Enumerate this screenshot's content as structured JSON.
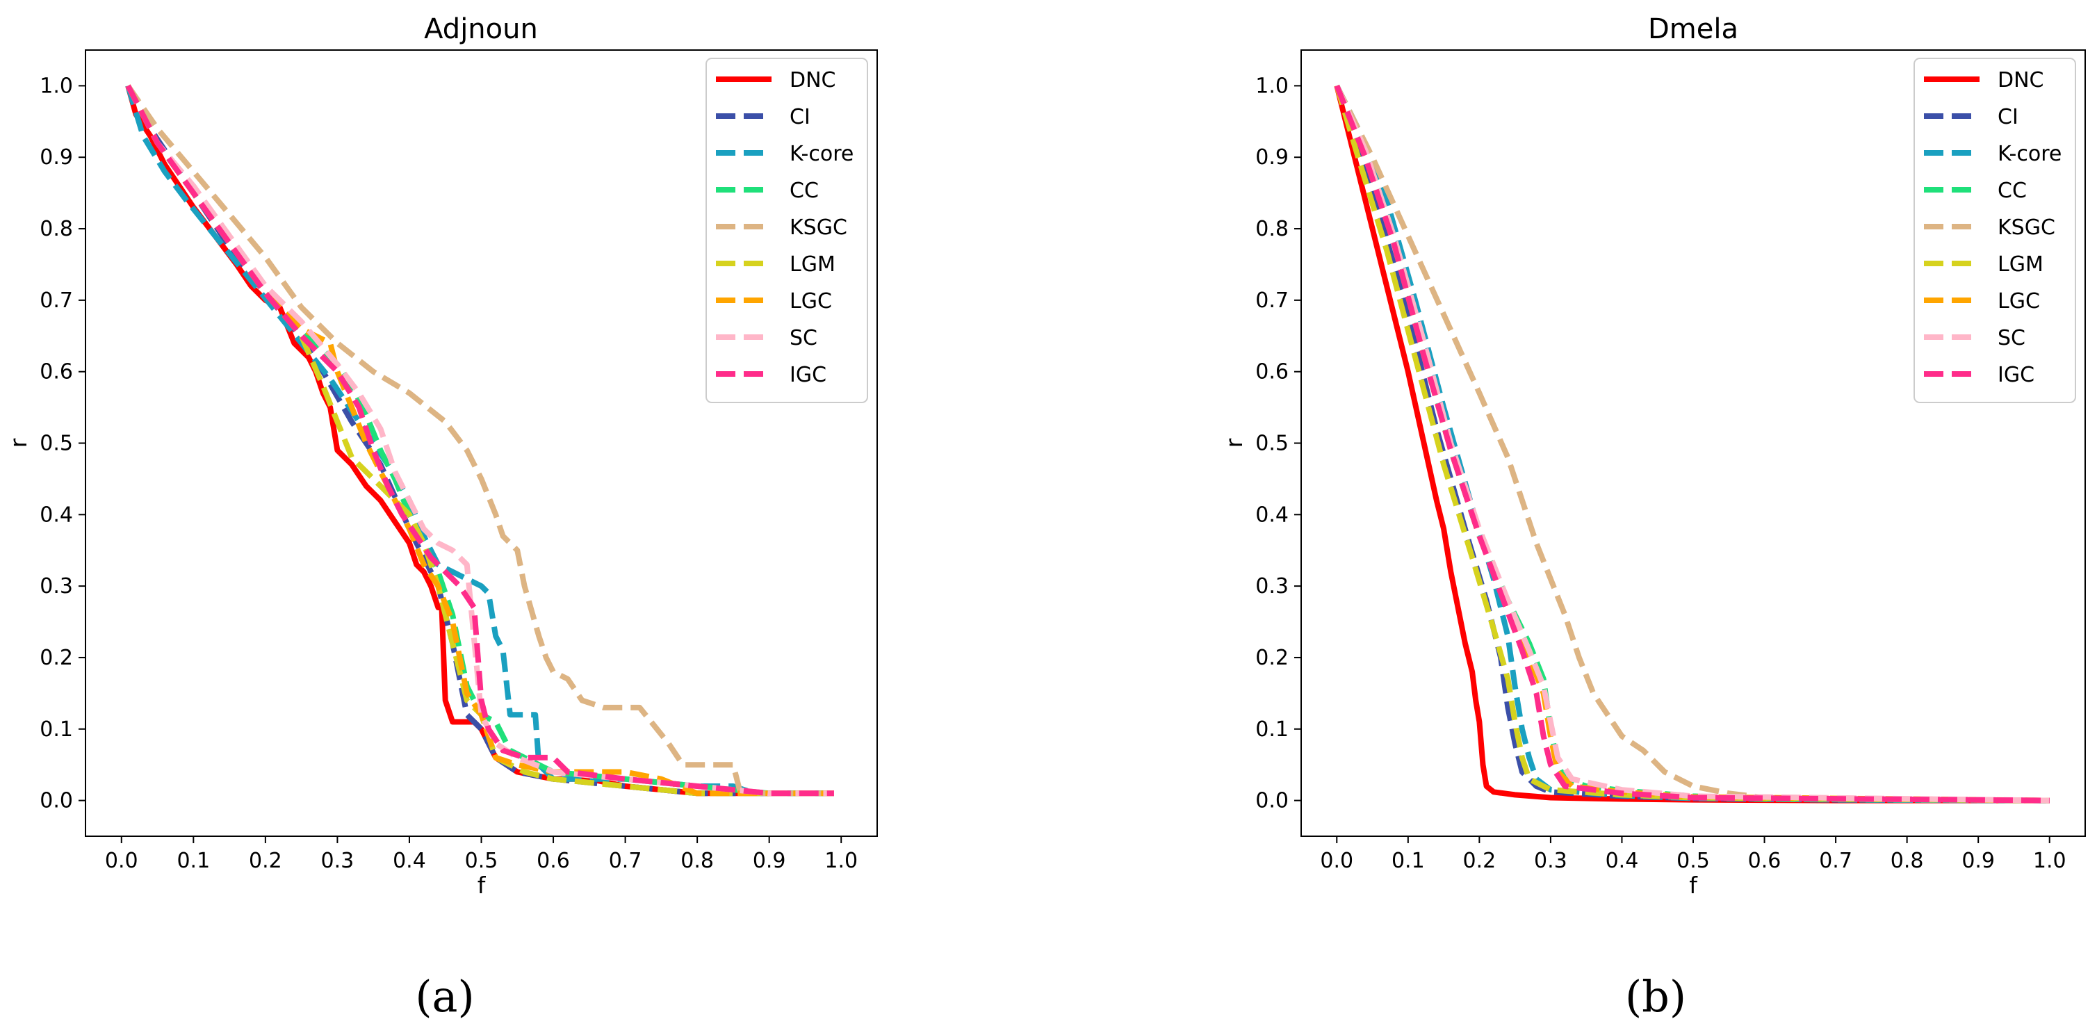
{
  "chart_data": [
    {
      "type": "line",
      "caption": "(a)",
      "title": "Adjnoun",
      "xlabel": "f",
      "ylabel": "r",
      "xlim": [
        -0.05,
        1.05
      ],
      "ylim": [
        -0.05,
        1.05
      ],
      "xticks": [
        "0.0",
        "0.1",
        "0.2",
        "0.3",
        "0.4",
        "0.5",
        "0.6",
        "0.7",
        "0.8",
        "0.9",
        "1.0"
      ],
      "yticks": [
        "0.0",
        "0.1",
        "0.2",
        "0.3",
        "0.4",
        "0.5",
        "0.6",
        "0.7",
        "0.8",
        "0.9",
        "1.0"
      ],
      "legend": "top-right",
      "series": [
        {
          "name": "DNC",
          "color": "#ff0000",
          "dash": "solid",
          "x": [
            0.009,
            0.02,
            0.04,
            0.06,
            0.08,
            0.1,
            0.13,
            0.16,
            0.18,
            0.2,
            0.22,
            0.24,
            0.26,
            0.27,
            0.28,
            0.29,
            0.3,
            0.32,
            0.34,
            0.36,
            0.38,
            0.4,
            0.41,
            0.42,
            0.43,
            0.44,
            0.445,
            0.45,
            0.46,
            0.48,
            0.49,
            0.5,
            0.52,
            0.55,
            0.6,
            0.65,
            0.7,
            0.8,
            0.9,
            0.99
          ],
          "y": [
            1.0,
            0.96,
            0.93,
            0.89,
            0.86,
            0.83,
            0.79,
            0.75,
            0.72,
            0.7,
            0.69,
            0.64,
            0.62,
            0.6,
            0.57,
            0.55,
            0.49,
            0.47,
            0.44,
            0.42,
            0.39,
            0.36,
            0.33,
            0.32,
            0.3,
            0.27,
            0.27,
            0.14,
            0.11,
            0.11,
            0.11,
            0.1,
            0.06,
            0.04,
            0.03,
            0.03,
            0.02,
            0.01,
            0.01,
            0.01
          ]
        },
        {
          "name": "CI",
          "color": "#3b4fa8",
          "dash": "dashed",
          "x": [
            0.009,
            0.04,
            0.08,
            0.12,
            0.16,
            0.2,
            0.24,
            0.28,
            0.32,
            0.36,
            0.4,
            0.42,
            0.44,
            0.46,
            0.48,
            0.5,
            0.52,
            0.55,
            0.6,
            0.7,
            0.8,
            0.9,
            0.99
          ],
          "y": [
            1.0,
            0.94,
            0.88,
            0.82,
            0.76,
            0.71,
            0.66,
            0.6,
            0.53,
            0.47,
            0.38,
            0.34,
            0.3,
            0.22,
            0.12,
            0.1,
            0.06,
            0.04,
            0.03,
            0.02,
            0.01,
            0.01,
            0.01
          ]
        },
        {
          "name": "K-core",
          "color": "#1aa0c0",
          "dash": "dashed",
          "x": [
            0.009,
            0.03,
            0.06,
            0.09,
            0.13,
            0.17,
            0.21,
            0.25,
            0.29,
            0.33,
            0.37,
            0.4,
            0.42,
            0.44,
            0.46,
            0.48,
            0.5,
            0.51,
            0.52,
            0.53,
            0.54,
            0.56,
            0.575,
            0.58,
            0.6,
            0.7,
            0.8,
            0.85,
            0.88,
            0.99
          ],
          "y": [
            1.0,
            0.93,
            0.88,
            0.84,
            0.79,
            0.74,
            0.69,
            0.64,
            0.59,
            0.53,
            0.47,
            0.42,
            0.37,
            0.33,
            0.32,
            0.31,
            0.3,
            0.29,
            0.23,
            0.21,
            0.12,
            0.12,
            0.12,
            0.05,
            0.03,
            0.03,
            0.02,
            0.02,
            0.01,
            0.01
          ]
        },
        {
          "name": "CC",
          "color": "#1fe07a",
          "dash": "dashed",
          "x": [
            0.009,
            0.05,
            0.1,
            0.15,
            0.2,
            0.25,
            0.3,
            0.32,
            0.34,
            0.36,
            0.38,
            0.4,
            0.42,
            0.44,
            0.46,
            0.48,
            0.5,
            0.52,
            0.54,
            0.56,
            0.58,
            0.6,
            0.7,
            0.8,
            0.9,
            0.99
          ],
          "y": [
            1.0,
            0.92,
            0.85,
            0.78,
            0.71,
            0.66,
            0.61,
            0.58,
            0.54,
            0.49,
            0.45,
            0.4,
            0.36,
            0.32,
            0.26,
            0.16,
            0.12,
            0.11,
            0.07,
            0.06,
            0.05,
            0.04,
            0.03,
            0.02,
            0.01,
            0.01
          ]
        },
        {
          "name": "KSGC",
          "color": "#ddb483",
          "dash": "dashed",
          "x": [
            0.009,
            0.05,
            0.1,
            0.15,
            0.2,
            0.25,
            0.3,
            0.35,
            0.4,
            0.45,
            0.48,
            0.5,
            0.52,
            0.53,
            0.54,
            0.55,
            0.56,
            0.58,
            0.59,
            0.6,
            0.62,
            0.64,
            0.67,
            0.72,
            0.76,
            0.78,
            0.79,
            0.82,
            0.85,
            0.86,
            0.99
          ],
          "y": [
            1.0,
            0.94,
            0.88,
            0.82,
            0.76,
            0.69,
            0.64,
            0.6,
            0.57,
            0.53,
            0.49,
            0.45,
            0.4,
            0.37,
            0.36,
            0.35,
            0.3,
            0.23,
            0.2,
            0.18,
            0.17,
            0.14,
            0.13,
            0.13,
            0.08,
            0.05,
            0.05,
            0.05,
            0.05,
            0.01,
            0.01
          ]
        },
        {
          "name": "LGM",
          "color": "#d6d21e",
          "dash": "dashed",
          "x": [
            0.009,
            0.05,
            0.1,
            0.15,
            0.2,
            0.25,
            0.28,
            0.3,
            0.32,
            0.34,
            0.36,
            0.38,
            0.4,
            0.42,
            0.44,
            0.46,
            0.48,
            0.5,
            0.52,
            0.54,
            0.56,
            0.6,
            0.7,
            0.8,
            0.9,
            0.99
          ],
          "y": [
            1.0,
            0.92,
            0.85,
            0.78,
            0.71,
            0.65,
            0.58,
            0.53,
            0.48,
            0.46,
            0.44,
            0.42,
            0.4,
            0.36,
            0.3,
            0.22,
            0.14,
            0.12,
            0.06,
            0.05,
            0.04,
            0.03,
            0.02,
            0.01,
            0.01,
            0.01
          ]
        },
        {
          "name": "LGC",
          "color": "#ffa500",
          "dash": "dashed",
          "x": [
            0.009,
            0.05,
            0.1,
            0.15,
            0.2,
            0.25,
            0.29,
            0.3,
            0.32,
            0.34,
            0.36,
            0.38,
            0.4,
            0.42,
            0.44,
            0.46,
            0.48,
            0.5,
            0.52,
            0.55,
            0.6,
            0.65,
            0.7,
            0.75,
            0.8,
            0.9,
            0.99
          ],
          "y": [
            1.0,
            0.92,
            0.85,
            0.78,
            0.71,
            0.66,
            0.64,
            0.6,
            0.55,
            0.5,
            0.46,
            0.42,
            0.38,
            0.33,
            0.3,
            0.25,
            0.15,
            0.12,
            0.06,
            0.05,
            0.04,
            0.04,
            0.04,
            0.03,
            0.01,
            0.01,
            0.01
          ]
        },
        {
          "name": "SC",
          "color": "#ffb6c8",
          "dash": "dashed",
          "x": [
            0.009,
            0.05,
            0.1,
            0.15,
            0.2,
            0.25,
            0.3,
            0.33,
            0.36,
            0.38,
            0.4,
            0.42,
            0.44,
            0.46,
            0.48,
            0.5,
            0.52,
            0.55,
            0.6,
            0.7,
            0.8,
            0.9,
            0.99
          ],
          "y": [
            1.0,
            0.92,
            0.86,
            0.79,
            0.72,
            0.67,
            0.61,
            0.57,
            0.52,
            0.46,
            0.42,
            0.38,
            0.36,
            0.35,
            0.33,
            0.12,
            0.08,
            0.06,
            0.04,
            0.03,
            0.02,
            0.01,
            0.01
          ]
        },
        {
          "name": "IGC",
          "color": "#ff2c8a",
          "dash": "dashed",
          "x": [
            0.009,
            0.05,
            0.1,
            0.15,
            0.2,
            0.25,
            0.3,
            0.33,
            0.35,
            0.37,
            0.39,
            0.41,
            0.43,
            0.45,
            0.47,
            0.49,
            0.5,
            0.51,
            0.53,
            0.56,
            0.6,
            0.62,
            0.7,
            0.8,
            0.9,
            0.99
          ],
          "y": [
            1.0,
            0.92,
            0.85,
            0.78,
            0.71,
            0.65,
            0.6,
            0.55,
            0.49,
            0.44,
            0.4,
            0.37,
            0.34,
            0.32,
            0.3,
            0.27,
            0.14,
            0.1,
            0.07,
            0.06,
            0.06,
            0.04,
            0.03,
            0.02,
            0.01,
            0.01
          ]
        }
      ]
    },
    {
      "type": "line",
      "caption": "(b)",
      "title": "Dmela",
      "xlabel": "f",
      "ylabel": "r",
      "xlim": [
        -0.05,
        1.05
      ],
      "ylim": [
        -0.05,
        1.05
      ],
      "xticks": [
        "0.0",
        "0.1",
        "0.2",
        "0.3",
        "0.4",
        "0.5",
        "0.6",
        "0.7",
        "0.8",
        "0.9",
        "1.0"
      ],
      "yticks": [
        "0.0",
        "0.1",
        "0.2",
        "0.3",
        "0.4",
        "0.5",
        "0.6",
        "0.7",
        "0.8",
        "0.9",
        "1.0"
      ],
      "legend": "top-right",
      "series": [
        {
          "name": "DNC",
          "color": "#ff0000",
          "dash": "solid",
          "x": [
            0.0,
            0.02,
            0.04,
            0.06,
            0.08,
            0.1,
            0.12,
            0.14,
            0.15,
            0.16,
            0.17,
            0.18,
            0.19,
            0.195,
            0.2,
            0.205,
            0.21,
            0.22,
            0.25,
            0.3,
            0.4,
            0.5,
            0.7,
            1.0
          ],
          "y": [
            1.0,
            0.92,
            0.84,
            0.76,
            0.68,
            0.6,
            0.51,
            0.42,
            0.38,
            0.32,
            0.27,
            0.22,
            0.18,
            0.14,
            0.11,
            0.05,
            0.02,
            0.012,
            0.008,
            0.004,
            0.002,
            0.001,
            0.0,
            0.0
          ]
        },
        {
          "name": "CI",
          "color": "#3b4fa8",
          "dash": "dashed",
          "x": [
            0.0,
            0.03,
            0.06,
            0.1,
            0.14,
            0.18,
            0.21,
            0.23,
            0.24,
            0.25,
            0.26,
            0.28,
            0.3,
            0.4,
            0.5,
            0.7,
            1.0
          ],
          "y": [
            1.0,
            0.92,
            0.82,
            0.68,
            0.52,
            0.38,
            0.28,
            0.2,
            0.13,
            0.08,
            0.04,
            0.02,
            0.012,
            0.006,
            0.003,
            0.001,
            0.0
          ]
        },
        {
          "name": "K-core",
          "color": "#1aa0c0",
          "dash": "dashed",
          "x": [
            0.0,
            0.03,
            0.07,
            0.11,
            0.15,
            0.19,
            0.22,
            0.24,
            0.25,
            0.26,
            0.27,
            0.28,
            0.3,
            0.4,
            0.5,
            0.7,
            1.0
          ],
          "y": [
            1.0,
            0.94,
            0.84,
            0.7,
            0.55,
            0.41,
            0.31,
            0.23,
            0.16,
            0.1,
            0.06,
            0.03,
            0.015,
            0.007,
            0.003,
            0.001,
            0.0
          ]
        },
        {
          "name": "CC",
          "color": "#1fe07a",
          "dash": "dashed",
          "x": [
            0.0,
            0.04,
            0.08,
            0.12,
            0.16,
            0.2,
            0.24,
            0.27,
            0.29,
            0.3,
            0.31,
            0.32,
            0.35,
            0.4,
            0.45,
            0.5,
            0.6,
            1.0
          ],
          "y": [
            1.0,
            0.91,
            0.79,
            0.64,
            0.49,
            0.37,
            0.28,
            0.22,
            0.17,
            0.1,
            0.05,
            0.03,
            0.02,
            0.014,
            0.01,
            0.006,
            0.002,
            0.0
          ]
        },
        {
          "name": "KSGC",
          "color": "#ddb483",
          "dash": "dashed",
          "x": [
            0.0,
            0.05,
            0.1,
            0.15,
            0.2,
            0.24,
            0.28,
            0.3,
            0.32,
            0.34,
            0.36,
            0.38,
            0.4,
            0.43,
            0.46,
            0.5,
            0.55,
            0.6,
            0.7,
            1.0
          ],
          "y": [
            1.0,
            0.9,
            0.79,
            0.68,
            0.57,
            0.48,
            0.36,
            0.31,
            0.26,
            0.2,
            0.15,
            0.12,
            0.09,
            0.07,
            0.04,
            0.02,
            0.01,
            0.004,
            0.002,
            0.0
          ]
        },
        {
          "name": "LGM",
          "color": "#d6d21e",
          "dash": "dashed",
          "x": [
            0.0,
            0.03,
            0.07,
            0.11,
            0.15,
            0.19,
            0.22,
            0.24,
            0.25,
            0.26,
            0.27,
            0.3,
            0.4,
            0.5,
            1.0
          ],
          "y": [
            1.0,
            0.9,
            0.77,
            0.62,
            0.47,
            0.34,
            0.24,
            0.17,
            0.11,
            0.06,
            0.03,
            0.015,
            0.008,
            0.004,
            0.0
          ]
        },
        {
          "name": "LGC",
          "color": "#ffa500",
          "dash": "dashed",
          "x": [
            0.0,
            0.04,
            0.08,
            0.12,
            0.16,
            0.2,
            0.24,
            0.27,
            0.29,
            0.3,
            0.31,
            0.33,
            0.4,
            0.5,
            1.0
          ],
          "y": [
            1.0,
            0.9,
            0.78,
            0.63,
            0.49,
            0.37,
            0.27,
            0.2,
            0.15,
            0.09,
            0.04,
            0.02,
            0.012,
            0.005,
            0.0
          ]
        },
        {
          "name": "SC",
          "color": "#ffb6c8",
          "dash": "dashed",
          "x": [
            0.0,
            0.04,
            0.08,
            0.12,
            0.16,
            0.2,
            0.24,
            0.27,
            0.29,
            0.3,
            0.31,
            0.33,
            0.4,
            0.5,
            1.0
          ],
          "y": [
            1.0,
            0.91,
            0.79,
            0.65,
            0.5,
            0.38,
            0.28,
            0.21,
            0.16,
            0.11,
            0.06,
            0.03,
            0.015,
            0.006,
            0.0
          ]
        },
        {
          "name": "IGC",
          "color": "#ff2c8a",
          "dash": "dashed",
          "x": [
            0.0,
            0.04,
            0.08,
            0.12,
            0.16,
            0.2,
            0.23,
            0.26,
            0.28,
            0.29,
            0.3,
            0.32,
            0.4,
            0.5,
            1.0
          ],
          "y": [
            1.0,
            0.9,
            0.78,
            0.63,
            0.49,
            0.37,
            0.29,
            0.21,
            0.15,
            0.09,
            0.05,
            0.02,
            0.01,
            0.004,
            0.0
          ]
        }
      ]
    }
  ]
}
